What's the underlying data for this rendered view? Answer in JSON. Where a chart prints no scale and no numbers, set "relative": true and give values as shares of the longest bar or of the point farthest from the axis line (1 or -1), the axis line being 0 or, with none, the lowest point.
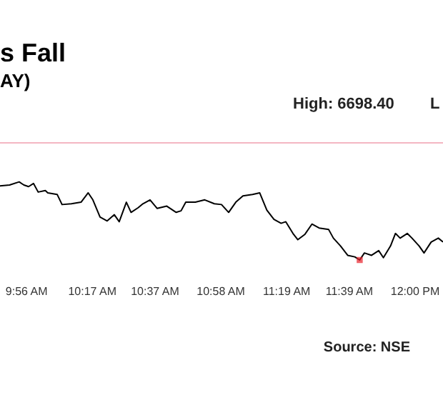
{
  "chart_data": {
    "type": "line",
    "title": "s Fall",
    "subtitle": "AY)",
    "relative": true,
    "grid": false,
    "annotations": [
      "High: 6698.40",
      "L",
      "Source: NSE"
    ],
    "xlim": [
      9.796,
      12.152
    ],
    "xticks": [
      {
        "value": 9.9333,
        "label": "9:56 AM"
      },
      {
        "value": 10.2833,
        "label": "10:17 AM"
      },
      {
        "value": 10.6167,
        "label": "10:37 AM"
      },
      {
        "value": 10.9667,
        "label": "10:58 AM"
      },
      {
        "value": 11.3167,
        "label": "11:19 AM"
      },
      {
        "value": 11.65,
        "label": "11:39 AM"
      },
      {
        "value": 12.0,
        "label": "12:00 PM"
      }
    ],
    "ref_lines": [
      {
        "axis": "y",
        "value": 1.5,
        "color": "#f4b6c2"
      }
    ],
    "series": [
      {
        "color": "#000000",
        "x": [
          9.796,
          9.847,
          9.898,
          9.923,
          9.948,
          9.974,
          9.999,
          10.037,
          10.05,
          10.1,
          10.126,
          10.176,
          10.227,
          10.265,
          10.29,
          10.328,
          10.366,
          10.404,
          10.43,
          10.468,
          10.493,
          10.531,
          10.556,
          10.594,
          10.632,
          10.683,
          10.733,
          10.759,
          10.784,
          10.835,
          10.885,
          10.936,
          10.974,
          11.012,
          11.05,
          11.088,
          11.139,
          11.177,
          11.215,
          11.253,
          11.291,
          11.316,
          11.354,
          11.38,
          11.418,
          11.455,
          11.493,
          11.544,
          11.569,
          11.607,
          11.645,
          11.683,
          11.709,
          11.734,
          11.772,
          11.81,
          11.835,
          11.873,
          11.899,
          11.924,
          11.962,
          11.987,
          12.025,
          12.051,
          12.089,
          12.127,
          12.152
        ],
        "values": [
          0.95,
          0.96,
          1.0,
          0.96,
          0.94,
          0.98,
          0.87,
          0.89,
          0.86,
          0.84,
          0.71,
          0.72,
          0.74,
          0.86,
          0.77,
          0.55,
          0.5,
          0.58,
          0.49,
          0.74,
          0.61,
          0.67,
          0.72,
          0.77,
          0.66,
          0.69,
          0.61,
          0.63,
          0.74,
          0.74,
          0.77,
          0.72,
          0.71,
          0.61,
          0.74,
          0.82,
          0.84,
          0.86,
          0.64,
          0.52,
          0.47,
          0.49,
          0.34,
          0.26,
          0.33,
          0.46,
          0.41,
          0.39,
          0.28,
          0.18,
          0.06,
          0.04,
          0.0,
          0.09,
          0.06,
          0.12,
          0.03,
          0.18,
          0.34,
          0.28,
          0.34,
          0.28,
          0.18,
          0.09,
          0.23,
          0.28,
          0.23
        ]
      },
      {
        "type": "scatter",
        "color": "#e8202a",
        "marker": "square",
        "x": [
          11.709
        ],
        "values": [
          0.0
        ]
      }
    ]
  }
}
